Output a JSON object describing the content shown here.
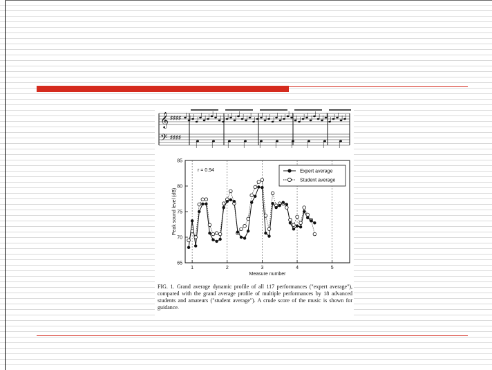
{
  "figure": {
    "caption": "FIG. 1. Grand average dynamic profile of all 117 performances (\"expert average\"), compared with the grand average profile of multiple performances by 18 advanced students and amateurs (\"student average\"). A crude score of the music is shown for guidance."
  },
  "colors": {
    "accent": "#d52b1e",
    "stripe": "#d9d9d9"
  },
  "chart_data": {
    "type": "line",
    "title": "",
    "annotation": "r = 0.94",
    "xlabel": "Measure number",
    "ylabel": "Peak sound level (dB)",
    "xlim": [
      0.8,
      5.5
    ],
    "ylim": [
      65,
      85
    ],
    "xticks": [
      1,
      2,
      3,
      4,
      5
    ],
    "yticks": [
      65,
      70,
      75,
      80,
      85
    ],
    "measure_lines": [
      1,
      2,
      3,
      4,
      5
    ],
    "legend_position": "top-right",
    "series": [
      {
        "name": "Expert average",
        "marker": "filled-circle",
        "line": "solid",
        "points": [
          [
            0.9,
            68.0
          ],
          [
            1.0,
            73.2
          ],
          [
            1.1,
            68.3
          ],
          [
            1.2,
            75.0
          ],
          [
            1.3,
            76.5
          ],
          [
            1.4,
            76.5
          ],
          [
            1.5,
            70.8
          ],
          [
            1.6,
            69.5
          ],
          [
            1.7,
            69.2
          ],
          [
            1.8,
            69.6
          ],
          [
            1.9,
            75.8
          ],
          [
            2.0,
            77.0
          ],
          [
            2.1,
            77.3
          ],
          [
            2.2,
            77.0
          ],
          [
            2.3,
            71.0
          ],
          [
            2.4,
            70.0
          ],
          [
            2.5,
            69.8
          ],
          [
            2.6,
            71.2
          ],
          [
            2.7,
            76.8
          ],
          [
            2.8,
            78.0
          ],
          [
            2.9,
            79.8
          ],
          [
            3.0,
            79.7
          ],
          [
            3.1,
            70.8
          ],
          [
            3.2,
            70.2
          ],
          [
            3.3,
            76.6
          ],
          [
            3.4,
            75.8
          ],
          [
            3.5,
            76.2
          ],
          [
            3.6,
            76.8
          ],
          [
            3.7,
            76.4
          ],
          [
            3.8,
            72.8
          ],
          [
            3.9,
            71.6
          ],
          [
            4.0,
            72.2
          ],
          [
            4.1,
            72.0
          ],
          [
            4.2,
            75.0
          ],
          [
            4.3,
            73.8
          ],
          [
            4.4,
            73.2
          ],
          [
            4.5,
            72.8
          ]
        ]
      },
      {
        "name": "Student average",
        "marker": "open-circle",
        "line": "dotted",
        "points": [
          [
            0.9,
            69.4
          ],
          [
            1.0,
            71.2
          ],
          [
            1.1,
            70.0
          ],
          [
            1.2,
            76.4
          ],
          [
            1.3,
            77.4
          ],
          [
            1.4,
            77.4
          ],
          [
            1.5,
            72.4
          ],
          [
            1.6,
            70.6
          ],
          [
            1.7,
            70.8
          ],
          [
            1.8,
            70.6
          ],
          [
            1.9,
            76.6
          ],
          [
            2.0,
            77.4
          ],
          [
            2.1,
            79.0
          ],
          [
            2.2,
            76.6
          ],
          [
            2.3,
            70.8
          ],
          [
            2.4,
            71.6
          ],
          [
            2.5,
            72.2
          ],
          [
            2.6,
            73.6
          ],
          [
            2.7,
            78.2
          ],
          [
            2.8,
            79.8
          ],
          [
            2.9,
            80.8
          ],
          [
            3.0,
            81.2
          ],
          [
            3.1,
            74.2
          ],
          [
            3.2,
            71.6
          ],
          [
            3.3,
            78.6
          ],
          [
            3.4,
            76.2
          ],
          [
            3.5,
            76.6
          ],
          [
            3.6,
            76.6
          ],
          [
            3.7,
            75.8
          ],
          [
            3.8,
            73.4
          ],
          [
            3.9,
            72.4
          ],
          [
            4.0,
            74.0
          ],
          [
            4.1,
            72.8
          ],
          [
            4.2,
            75.8
          ],
          [
            4.3,
            74.4
          ],
          [
            4.4,
            73.4
          ],
          [
            4.5,
            70.6
          ]
        ]
      }
    ]
  }
}
